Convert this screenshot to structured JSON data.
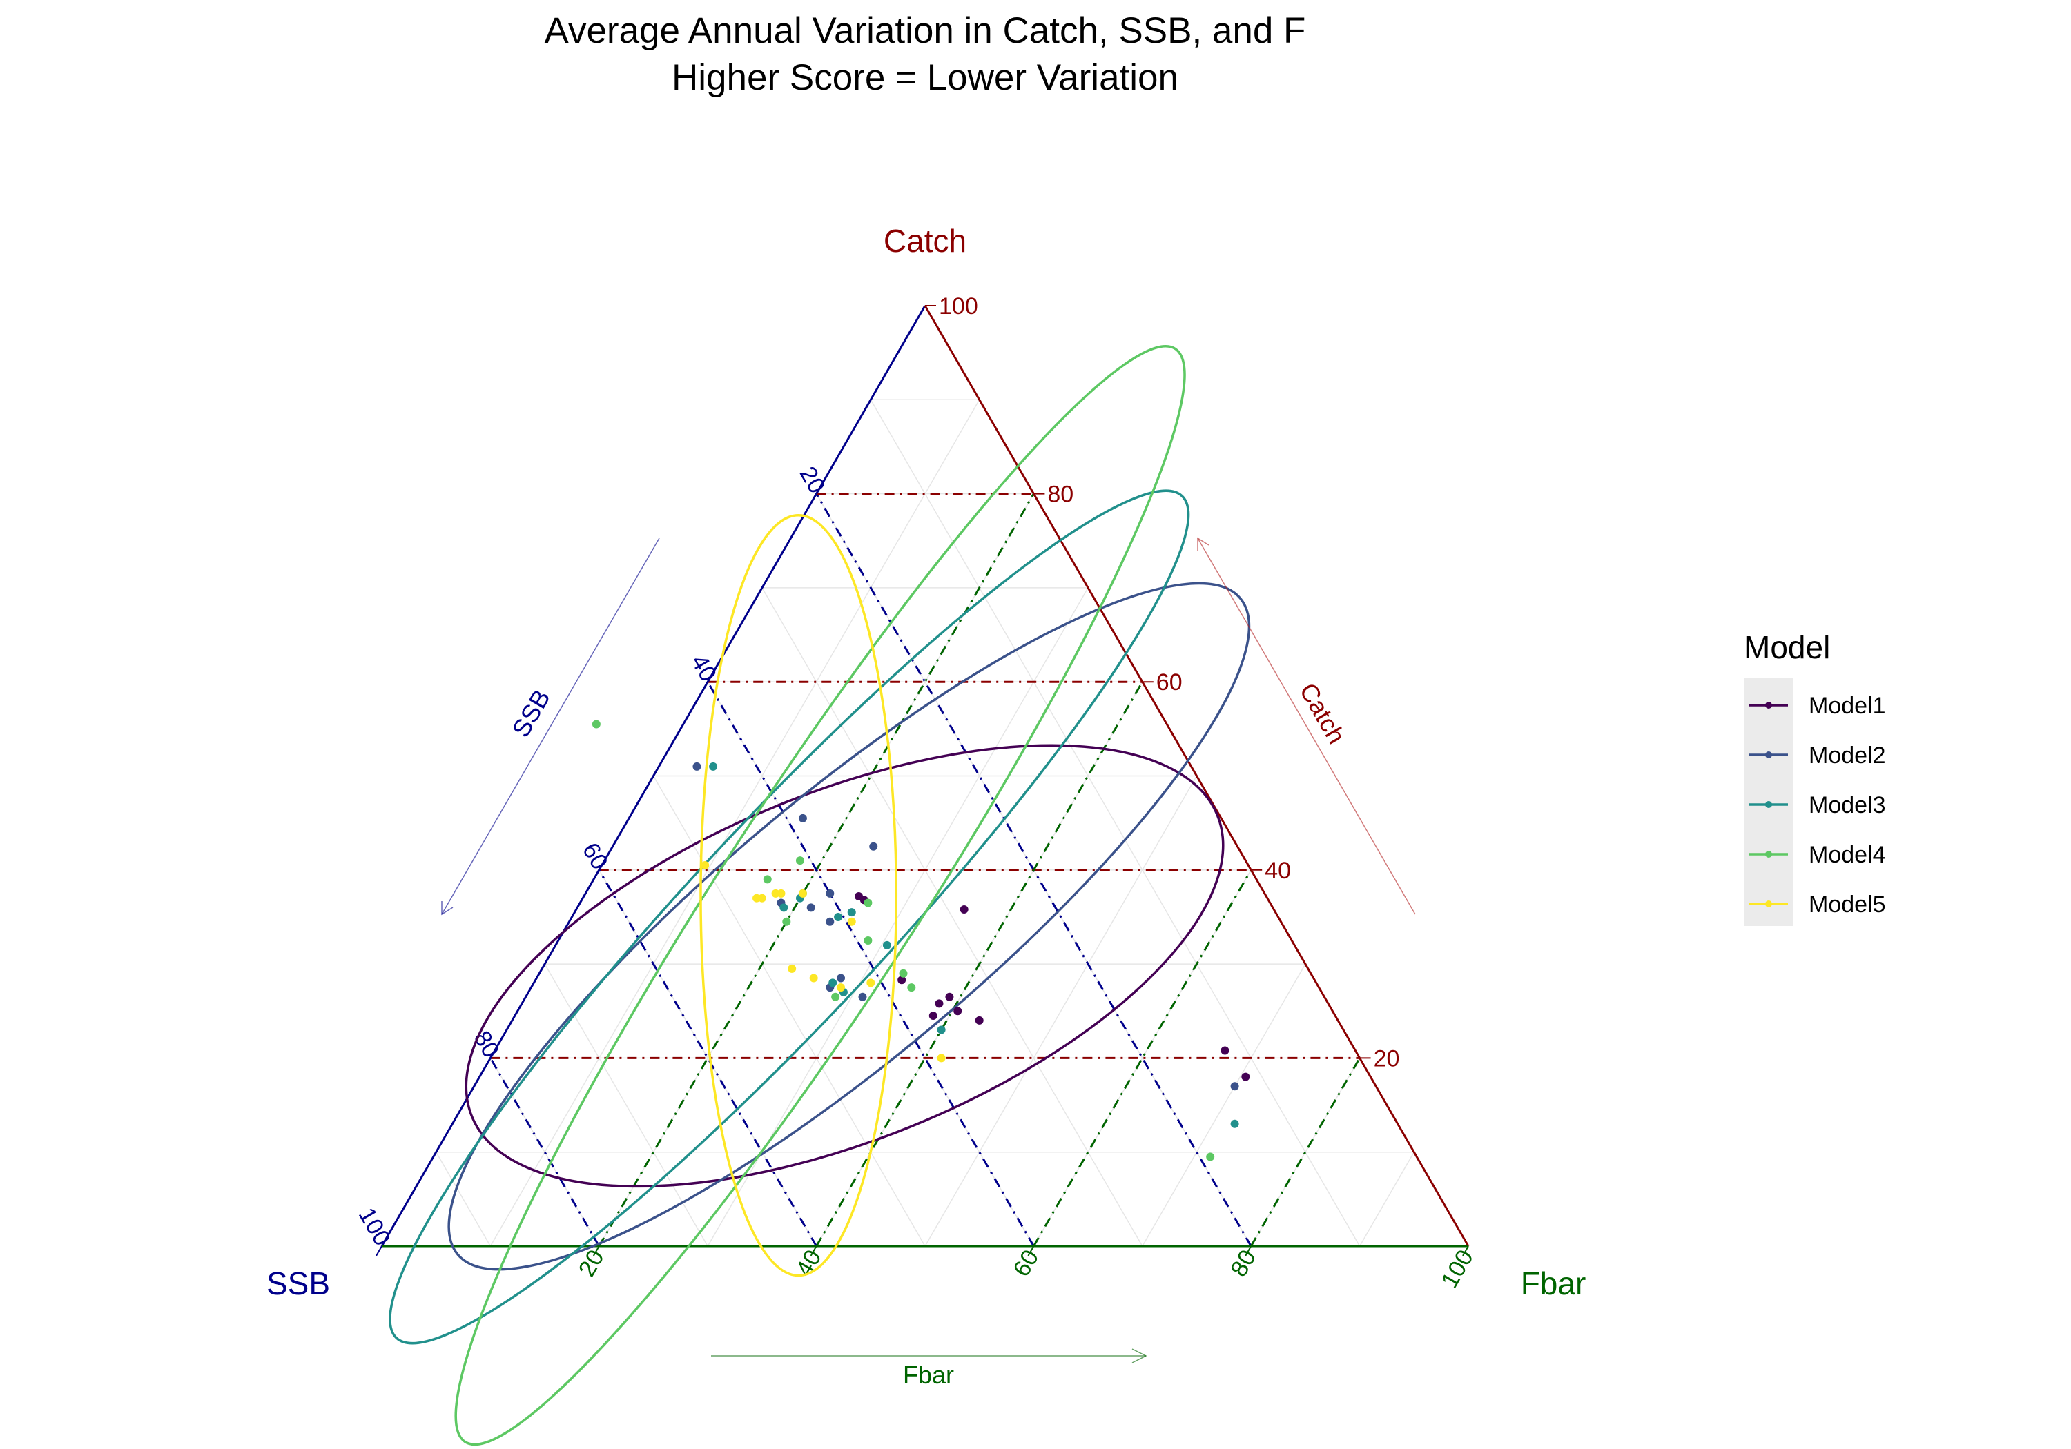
{
  "chart_data": {
    "type": "ternary-scatter",
    "title": "Average Annual Variation in Catch, SSB, and F",
    "subtitle": "Higher Score = Lower Variation",
    "axes": {
      "top": {
        "label": "Catch",
        "arrow_label": "Catch",
        "color": "#8B0000",
        "ticks": [
          "20",
          "40",
          "60",
          "80",
          "100"
        ]
      },
      "left": {
        "label": "SSB",
        "arrow_label": "SSB",
        "color": "#00008B",
        "ticks": [
          "20",
          "40",
          "60",
          "80",
          "100"
        ]
      },
      "right": {
        "label": "Fbar",
        "arrow_label": "Fbar",
        "color": "#006400",
        "ticks": [
          "20",
          "40",
          "60",
          "80",
          "100"
        ]
      }
    },
    "major_gridlines": [
      20,
      40,
      60,
      80
    ],
    "minor_grid": true,
    "legend": {
      "title": "Model",
      "position": "right"
    },
    "series": [
      {
        "name": "Model1",
        "color": "#440154",
        "ellipse": {
          "catch": 29.8,
          "ssb": 42.5,
          "fbar": 27.7,
          "major": 37,
          "minor": 16,
          "angle": -22
        },
        "points": [
          [
            37.2,
            37.5,
            25.3
          ],
          [
            36.8,
            37.2,
            26.0
          ],
          [
            35.8,
            28.5,
            35.7
          ],
          [
            28.3,
            38.0,
            33.7
          ],
          [
            26.5,
            34.5,
            39.0
          ],
          [
            25.8,
            35.8,
            38.4
          ],
          [
            25.0,
            34.5,
            40.5
          ],
          [
            24.5,
            37.0,
            38.5
          ],
          [
            24.0,
            33.0,
            43.0
          ],
          [
            20.8,
            12.0,
            67.2
          ],
          [
            18.0,
            11.5,
            70.5
          ]
        ]
      },
      {
        "name": "Model2",
        "color": "#3B528B",
        "ellipse": {
          "catch": 34.0,
          "ssb": 40.0,
          "fbar": 26.0,
          "major": 47,
          "minor": 12,
          "angle": -40
        },
        "points": [
          [
            51.0,
            45.5,
            3.5
          ],
          [
            45.5,
            38.5,
            16.0
          ],
          [
            42.5,
            33.5,
            24.0
          ],
          [
            37.5,
            40.0,
            22.5
          ],
          [
            36.5,
            45.0,
            18.5
          ],
          [
            36.0,
            42.5,
            21.5
          ],
          [
            34.5,
            41.5,
            24.0
          ],
          [
            28.5,
            43.5,
            28.0
          ],
          [
            27.5,
            45.0,
            27.5
          ],
          [
            26.5,
            42.5,
            31.0
          ],
          [
            17.0,
            13.0,
            70.0
          ]
        ]
      },
      {
        "name": "Model3",
        "color": "#21908C",
        "ellipse": {
          "catch": 35.0,
          "ssb": 45.0,
          "fbar": 20.0,
          "major": 53,
          "minor": 9,
          "angle": -47
        },
        "points": [
          [
            51.0,
            44.0,
            5.0
          ],
          [
            37.5,
            42.5,
            20.0
          ],
          [
            37.0,
            43.0,
            20.0
          ],
          [
            36.0,
            45.0,
            19.0
          ],
          [
            35.5,
            39.0,
            25.5
          ],
          [
            35.0,
            40.5,
            24.5
          ],
          [
            32.0,
            37.5,
            30.5
          ],
          [
            28.0,
            44.5,
            27.5
          ],
          [
            27.0,
            44.0,
            29.0
          ],
          [
            23.0,
            37.0,
            40.0
          ],
          [
            13.0,
            15.0,
            72.0
          ]
        ]
      },
      {
        "name": "Model4",
        "color": "#5DC863",
        "ellipse": {
          "catch": 37.3,
          "ssb": 41.0,
          "fbar": 21.7,
          "major": 60,
          "minor": 9,
          "angle": -57
        },
        "points": [
          [
            55.5,
            52.5,
            -8.0
          ],
          [
            41.0,
            41.0,
            18.0
          ],
          [
            39.0,
            45.0,
            16.0
          ],
          [
            36.5,
            37.0,
            26.5
          ],
          [
            34.5,
            45.5,
            20.0
          ],
          [
            32.5,
            39.0,
            28.5
          ],
          [
            29.0,
            37.5,
            33.5
          ],
          [
            27.5,
            37.5,
            35.0
          ],
          [
            26.5,
            45.0,
            28.5
          ],
          [
            9.5,
            19.0,
            71.5
          ]
        ]
      },
      {
        "name": "Model5",
        "color": "#FDE725",
        "ellipse": {
          "catch": 37.3,
          "ssb": 43.0,
          "fbar": 19.7,
          "major": 35,
          "minor": 9,
          "angle": -90
        },
        "points": [
          [
            40.5,
            50.0,
            9.5
          ],
          [
            37.5,
            45.0,
            17.5
          ],
          [
            37.5,
            42.5,
            20.0
          ],
          [
            37.0,
            47.0,
            16.0
          ],
          [
            37.0,
            46.5,
            16.5
          ],
          [
            37.5,
            44.5,
            18.0
          ],
          [
            34.5,
            39.5,
            26.0
          ],
          [
            29.5,
            47.5,
            23.0
          ],
          [
            28.5,
            46.0,
            25.5
          ],
          [
            28.0,
            41.0,
            31.0
          ],
          [
            27.5,
            44.0,
            28.5
          ],
          [
            20.0,
            38.5,
            41.5
          ]
        ]
      }
    ]
  }
}
